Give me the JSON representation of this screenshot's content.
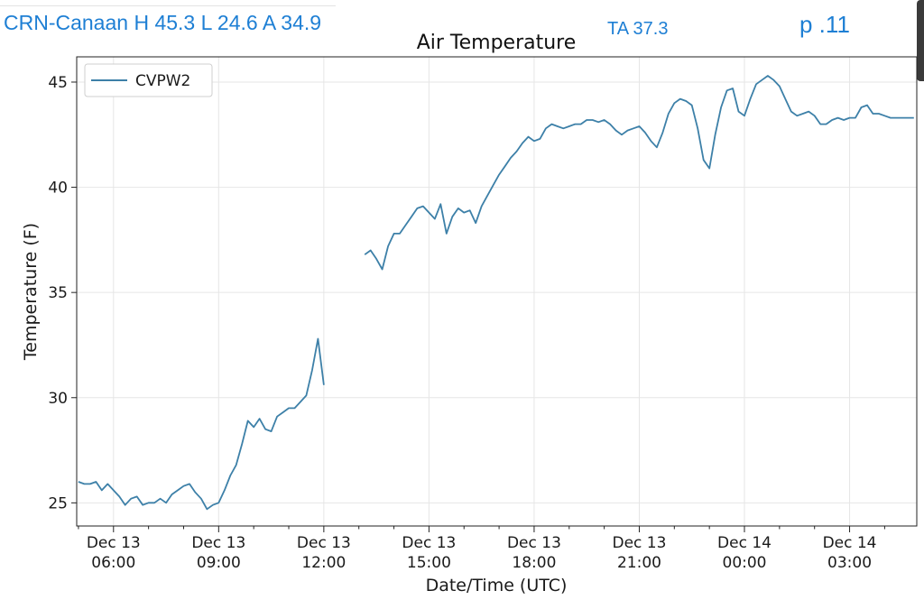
{
  "header": {
    "station_summary": "CRN-Canaan H 45.3 L 24.6 A 34.9",
    "ta_label": "TA 37.3",
    "page_label": "p .11"
  },
  "colors": {
    "overlay_text": "#1e7fd4",
    "series": "#3d80a8",
    "grid": "#e6e6e6"
  },
  "chart_data": {
    "type": "line",
    "title": "Air Temperature",
    "xlabel": "Date/Time (UTC)",
    "ylabel": "Temperature (F)",
    "ylim": [
      23.9,
      46.2
    ],
    "xlim_hours_utc": [
      "Dec 13 04:57",
      "Dec 14 04:55"
    ],
    "grid": true,
    "legend_placement": "top-left",
    "yticks": [
      25,
      30,
      35,
      40,
      45
    ],
    "xticks": [
      {
        "date": "Dec 13",
        "time": "06:00"
      },
      {
        "date": "Dec 13",
        "time": "09:00"
      },
      {
        "date": "Dec 13",
        "time": "12:00"
      },
      {
        "date": "Dec 13",
        "time": "15:00"
      },
      {
        "date": "Dec 13",
        "time": "18:00"
      },
      {
        "date": "Dec 13",
        "time": "21:00"
      },
      {
        "date": "Dec 14",
        "time": "00:00"
      },
      {
        "date": "Dec 14",
        "time": "03:00"
      }
    ],
    "series": [
      {
        "name": "CVPW2",
        "segments": [
          {
            "x": [
              "Dec 13 05:00",
              "Dec 13 05:10",
              "Dec 13 05:20",
              "Dec 13 05:30",
              "Dec 13 05:40",
              "Dec 13 05:50",
              "Dec 13 06:00",
              "Dec 13 06:10",
              "Dec 13 06:20",
              "Dec 13 06:30",
              "Dec 13 06:40",
              "Dec 13 06:50",
              "Dec 13 07:00",
              "Dec 13 07:10",
              "Dec 13 07:20",
              "Dec 13 07:30",
              "Dec 13 07:40",
              "Dec 13 07:50",
              "Dec 13 08:00",
              "Dec 13 08:10",
              "Dec 13 08:20",
              "Dec 13 08:30",
              "Dec 13 08:40",
              "Dec 13 08:50",
              "Dec 13 09:00",
              "Dec 13 09:10",
              "Dec 13 09:20",
              "Dec 13 09:30",
              "Dec 13 09:40",
              "Dec 13 09:50",
              "Dec 13 10:00",
              "Dec 13 10:10",
              "Dec 13 10:20",
              "Dec 13 10:30",
              "Dec 13 10:40",
              "Dec 13 10:50",
              "Dec 13 11:00",
              "Dec 13 11:10",
              "Dec 13 11:20",
              "Dec 13 11:30",
              "Dec 13 11:40",
              "Dec 13 11:50",
              "Dec 13 12:00"
            ],
            "y": [
              26.0,
              25.9,
              25.9,
              26.0,
              25.6,
              25.9,
              25.6,
              25.3,
              24.9,
              25.2,
              25.3,
              24.9,
              25.0,
              25.0,
              25.2,
              25.0,
              25.4,
              25.6,
              25.8,
              25.9,
              25.5,
              25.2,
              24.7,
              24.9,
              25.0,
              25.6,
              26.3,
              26.8,
              27.8,
              28.9,
              28.6,
              29.0,
              28.5,
              28.4,
              29.1,
              29.3,
              29.5,
              29.5,
              29.8,
              30.1,
              31.3,
              32.8,
              30.6
            ]
          },
          {
            "x": [
              "Dec 13 13:10",
              "Dec 13 13:20",
              "Dec 13 13:30",
              "Dec 13 13:40",
              "Dec 13 13:50",
              "Dec 13 14:00",
              "Dec 13 14:10",
              "Dec 13 14:20",
              "Dec 13 14:30",
              "Dec 13 14:40",
              "Dec 13 14:50",
              "Dec 13 15:00",
              "Dec 13 15:10",
              "Dec 13 15:20",
              "Dec 13 15:30",
              "Dec 13 15:40",
              "Dec 13 15:50",
              "Dec 13 16:00",
              "Dec 13 16:10",
              "Dec 13 16:20",
              "Dec 13 16:30",
              "Dec 13 16:40",
              "Dec 13 16:50",
              "Dec 13 17:00",
              "Dec 13 17:10",
              "Dec 13 17:20",
              "Dec 13 17:30",
              "Dec 13 17:40",
              "Dec 13 17:50",
              "Dec 13 18:00",
              "Dec 13 18:10",
              "Dec 13 18:20",
              "Dec 13 18:30",
              "Dec 13 18:40",
              "Dec 13 18:50",
              "Dec 13 19:00",
              "Dec 13 19:10",
              "Dec 13 19:20",
              "Dec 13 19:30",
              "Dec 13 19:40",
              "Dec 13 19:50",
              "Dec 13 20:00",
              "Dec 13 20:10",
              "Dec 13 20:20",
              "Dec 13 20:30",
              "Dec 13 20:40",
              "Dec 13 20:50",
              "Dec 13 21:00",
              "Dec 13 21:10",
              "Dec 13 21:20",
              "Dec 13 21:30",
              "Dec 13 21:40",
              "Dec 13 21:50",
              "Dec 13 22:00",
              "Dec 13 22:10",
              "Dec 13 22:20",
              "Dec 13 22:30",
              "Dec 13 22:40",
              "Dec 13 22:50",
              "Dec 13 23:00",
              "Dec 13 23:10",
              "Dec 13 23:20",
              "Dec 13 23:30",
              "Dec 13 23:40",
              "Dec 13 23:50",
              "Dec 14 00:00",
              "Dec 14 00:10",
              "Dec 14 00:20",
              "Dec 14 00:30",
              "Dec 14 00:40",
              "Dec 14 00:50",
              "Dec 14 01:00",
              "Dec 14 01:10",
              "Dec 14 01:20",
              "Dec 14 01:30",
              "Dec 14 01:40",
              "Dec 14 01:50",
              "Dec 14 02:00",
              "Dec 14 02:10",
              "Dec 14 02:20",
              "Dec 14 02:30",
              "Dec 14 02:40",
              "Dec 14 02:50",
              "Dec 14 03:00",
              "Dec 14 03:10",
              "Dec 14 03:20",
              "Dec 14 03:30",
              "Dec 14 03:40",
              "Dec 14 03:50",
              "Dec 14 04:00",
              "Dec 14 04:10",
              "Dec 14 04:20",
              "Dec 14 04:30",
              "Dec 14 04:40",
              "Dec 14 04:50"
            ],
            "y": [
              36.8,
              37.0,
              36.6,
              36.1,
              37.2,
              37.8,
              37.8,
              38.2,
              38.6,
              39.0,
              39.1,
              38.8,
              38.5,
              39.2,
              37.8,
              38.6,
              39.0,
              38.8,
              38.9,
              38.3,
              39.1,
              39.6,
              40.1,
              40.6,
              41.0,
              41.4,
              41.7,
              42.1,
              42.4,
              42.2,
              42.3,
              42.8,
              43.0,
              42.9,
              42.8,
              42.9,
              43.0,
              43.0,
              43.2,
              43.2,
              43.1,
              43.2,
              43.0,
              42.7,
              42.5,
              42.7,
              42.8,
              42.9,
              42.6,
              42.2,
              41.9,
              42.6,
              43.5,
              44.0,
              44.2,
              44.1,
              43.9,
              42.8,
              41.3,
              40.9,
              42.5,
              43.8,
              44.6,
              44.7,
              43.6,
              43.4,
              44.2,
              44.9,
              45.1,
              45.3,
              45.1,
              44.8,
              44.2,
              43.6,
              43.4,
              43.5,
              43.6,
              43.4,
              43.0,
              43.0,
              43.2,
              43.3,
              43.2,
              43.3,
              43.3,
              43.8,
              43.9,
              43.5,
              43.5,
              43.4,
              43.3,
              43.3,
              43.3,
              43.3,
              43.3
            ]
          }
        ]
      }
    ]
  }
}
